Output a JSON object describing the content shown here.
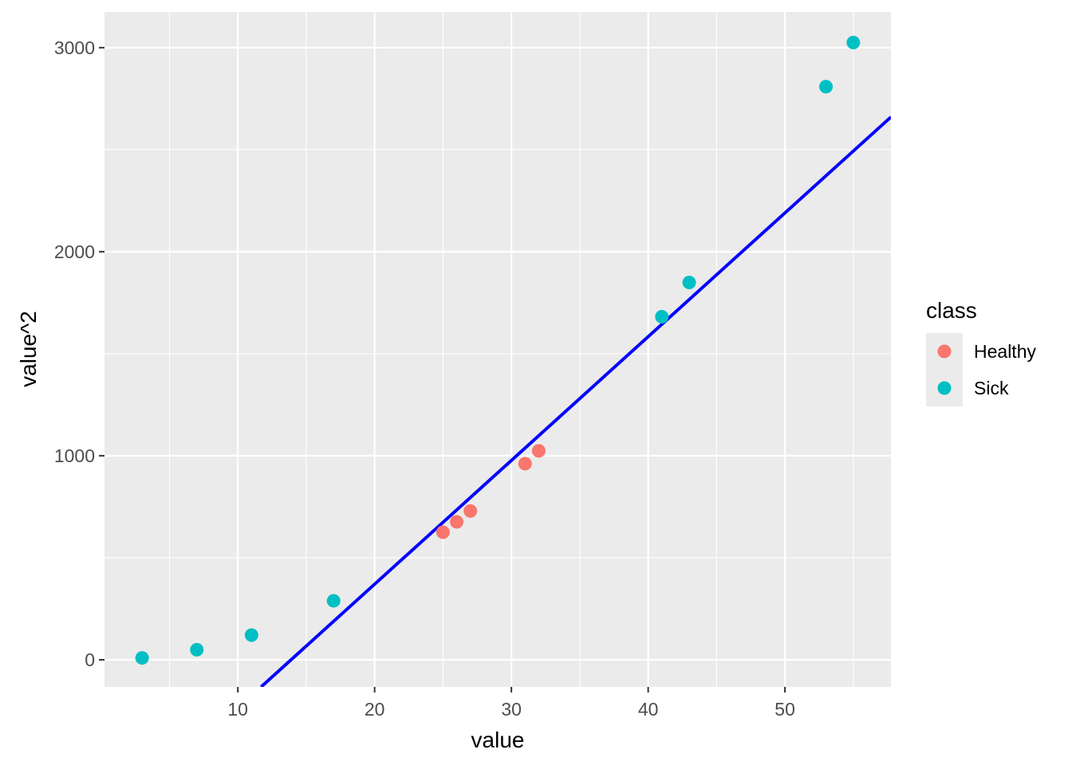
{
  "chart_data": {
    "type": "scatter",
    "xlabel": "value",
    "ylabel": "value^2",
    "xlim": [
      0.25,
      57.75
    ],
    "ylim": [
      -133,
      3175
    ],
    "x_ticks": [
      10,
      20,
      30,
      40,
      50
    ],
    "y_ticks": [
      0,
      1000,
      2000,
      3000
    ],
    "grid": true,
    "background": "#ebebeb",
    "legend": {
      "title": "class",
      "position": "right",
      "entries": [
        {
          "label": "Healthy",
          "color": "#f8766d"
        },
        {
          "label": "Sick",
          "color": "#00bfc4"
        }
      ]
    },
    "series": [
      {
        "name": "Healthy",
        "color": "#f8766d",
        "points": [
          [
            25,
            625
          ],
          [
            26,
            676
          ],
          [
            27,
            729
          ],
          [
            31,
            961
          ],
          [
            32,
            1024
          ]
        ]
      },
      {
        "name": "Sick",
        "color": "#00bfc4",
        "points": [
          [
            3,
            9
          ],
          [
            7,
            49
          ],
          [
            11,
            121
          ],
          [
            17,
            289
          ],
          [
            41,
            1681
          ],
          [
            43,
            1849
          ],
          [
            53,
            2809
          ],
          [
            55,
            3025
          ]
        ]
      }
    ],
    "fit_line": {
      "color": "#0000ff",
      "x": [
        11.7,
        57.75
      ],
      "y": [
        -133,
        2660
      ]
    }
  }
}
